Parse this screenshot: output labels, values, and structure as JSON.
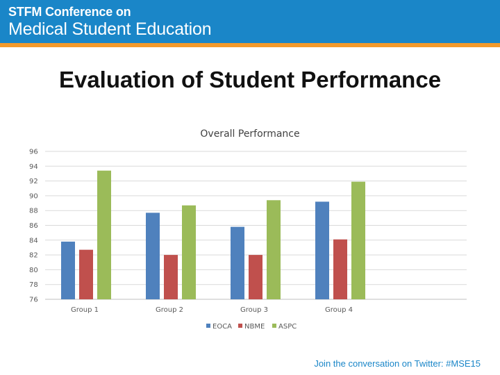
{
  "header": {
    "line1": "STFM Conference on",
    "line2": "Medical Student Education",
    "brand_color": "#1a86c8",
    "stripe_color": "#f39a2b"
  },
  "slide": {
    "title": "Evaluation of Student Performance"
  },
  "footer": {
    "text": "Join the conversation on Twitter: #MSE15"
  },
  "chart_data": {
    "type": "bar",
    "title": "Overall Performance",
    "xlabel": "",
    "ylabel": "",
    "categories": [
      "Group 1",
      "Group 2",
      "Group 3",
      "Group 4"
    ],
    "series": [
      {
        "name": "EOCA",
        "color": "#4f81bd",
        "values": [
          83.8,
          87.7,
          85.8,
          89.2
        ]
      },
      {
        "name": "NBME",
        "color": "#c0504d",
        "values": [
          82.7,
          82.0,
          82.0,
          84.1
        ]
      },
      {
        "name": "ASPC",
        "color": "#9bbb59",
        "values": [
          93.4,
          88.7,
          89.4,
          91.9
        ]
      }
    ],
    "ylim": [
      76,
      96
    ],
    "yticks": [
      "76",
      "78",
      "80",
      "82",
      "84",
      "86",
      "88",
      "90",
      "92",
      "94",
      "96"
    ],
    "grid": true,
    "legend_position": "bottom"
  }
}
